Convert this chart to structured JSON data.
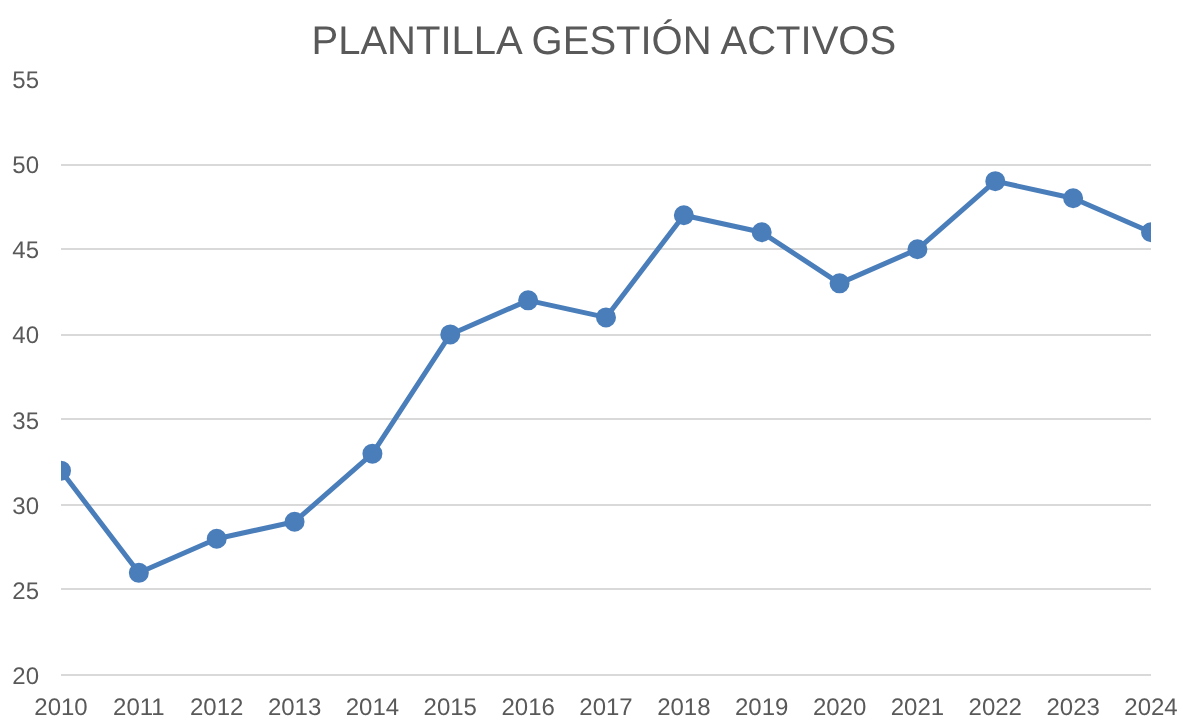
{
  "chart_data": {
    "type": "line",
    "title": "PLANTILLA GESTIÓN ACTIVOS",
    "categories": [
      "2010",
      "2011",
      "2012",
      "2013",
      "2014",
      "2015",
      "2016",
      "2017",
      "2018",
      "2019",
      "2020",
      "2021",
      "2022",
      "2023",
      "2024"
    ],
    "series": [
      {
        "color": "#4a7ebb",
        "values": [
          32,
          26,
          28,
          29,
          33,
          40,
          42,
          41,
          47,
          46,
          43,
          45,
          49,
          48,
          46
        ]
      }
    ],
    "ylim": [
      20,
      55
    ],
    "yticks": [
      20,
      25,
      30,
      35,
      40,
      45,
      50,
      55
    ],
    "grid": "y",
    "marker": "circle",
    "line_style": "solid"
  }
}
